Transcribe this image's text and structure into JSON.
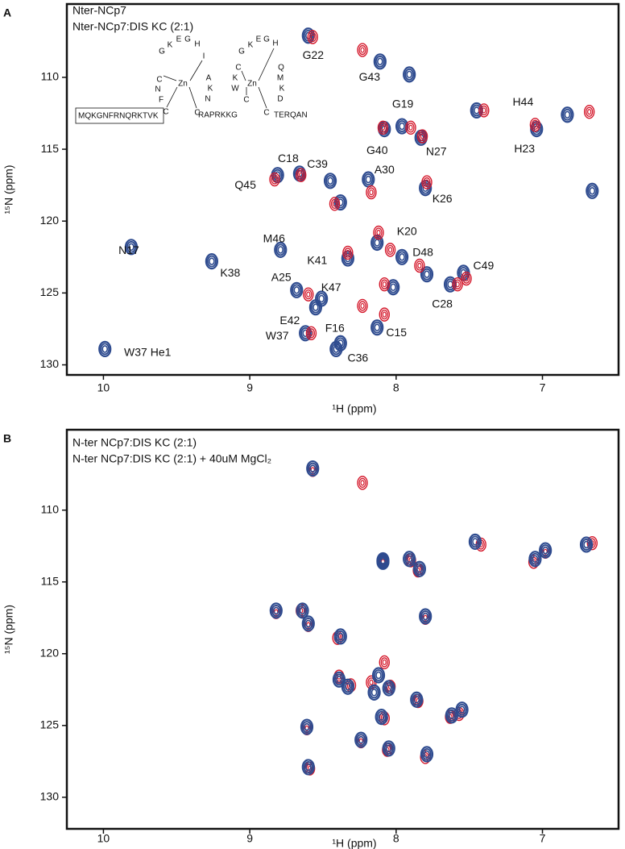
{
  "chart_data": [
    {
      "type": "scatter",
      "panel": "A",
      "xlabel": "¹H (ppm)",
      "ylabel": "¹⁵N (ppm)",
      "xlim": [
        10.25,
        6.48
      ],
      "ylim": [
        104.9,
        130.7
      ],
      "xticks": [
        10,
        9,
        8,
        7
      ],
      "yticks": [
        110,
        115,
        120,
        125,
        130
      ],
      "series": [
        {
          "name": "Nter-NCp7",
          "color": "#2e4b8f",
          "x": [
            8.6,
            8.11,
            7.91,
            7.96,
            8.08,
            7.83,
            7.45,
            6.83,
            7.04,
            6.66,
            8.66,
            8.81,
            8.45,
            8.19,
            7.8,
            8.38,
            9.81,
            9.26,
            8.79,
            8.13,
            8.33,
            7.96,
            7.79,
            7.54,
            7.63,
            8.68,
            8.51,
            8.55,
            8.62,
            8.38,
            8.41,
            8.13,
            9.99,
            8.02
          ],
          "y": [
            107.1,
            108.9,
            109.8,
            113.4,
            113.6,
            114.2,
            112.3,
            112.6,
            113.6,
            117.9,
            116.7,
            116.8,
            117.2,
            117.1,
            117.7,
            118.7,
            121.8,
            122.8,
            122.0,
            121.5,
            122.6,
            122.5,
            123.7,
            123.6,
            124.4,
            124.8,
            125.4,
            126.0,
            127.8,
            128.5,
            128.9,
            127.4,
            128.9,
            124.6
          ],
          "labels": [
            "G22",
            "G43",
            null,
            "G19",
            "G40",
            "N27",
            null,
            "H44",
            "H23",
            null,
            "C18",
            "Q45",
            "C39",
            "A30",
            "K26",
            null,
            "N17",
            "K38",
            "M46",
            "K20",
            "K41",
            "D48",
            null,
            "C49",
            "C28",
            "A25",
            "K47",
            "E42",
            "W37",
            "F16",
            "C36",
            "C15",
            "W37 He1",
            null
          ]
        },
        {
          "name": "Nter-NCp7:DIS KC (2:1)",
          "color": "#d4172a",
          "x": [
            8.57,
            8.23,
            7.4,
            6.68,
            7.05,
            7.9,
            8.09,
            7.82,
            8.65,
            8.83,
            8.42,
            7.79,
            8.12,
            8.33,
            8.04,
            7.84,
            7.58,
            8.08,
            8.6,
            8.23,
            8.58,
            8.08,
            8.17,
            7.52
          ],
          "y": [
            107.2,
            108.1,
            112.3,
            112.4,
            113.3,
            113.5,
            113.5,
            114.1,
            116.8,
            117.1,
            118.8,
            117.3,
            120.8,
            122.2,
            122.0,
            123.1,
            124.4,
            124.4,
            125.1,
            125.9,
            127.8,
            126.5,
            118.0,
            124.0
          ]
        }
      ],
      "inset": {
        "finger1": [
          "G",
          "K",
          "E",
          "G",
          "H",
          "I",
          "A",
          "K",
          "N",
          "C",
          "N",
          "F",
          "C",
          "C",
          "Zn"
        ],
        "finger2": [
          "G",
          "K",
          "E",
          "G",
          "H",
          "Q",
          "M",
          "K",
          "D",
          "C",
          "K",
          "W",
          "C",
          "C",
          "Zn"
        ],
        "linker": "RAPRKKG",
        "tail": "TERQAN",
        "sequence": [
          {
            "text": "MQ",
            "color": "#111111"
          },
          {
            "text": "K",
            "color": "#d4172a"
          },
          {
            "text": "GNF",
            "color": "#111111"
          },
          {
            "text": "R",
            "color": "#d4172a"
          },
          {
            "text": "NQ",
            "color": "#111111"
          },
          {
            "text": "RK",
            "color": "#d4172a"
          },
          {
            "text": "TV",
            "color": "#111111"
          },
          {
            "text": "K",
            "color": "#d4172a"
          }
        ]
      }
    },
    {
      "type": "scatter",
      "panel": "B",
      "xlabel": "¹H (ppm)",
      "ylabel": "¹⁵N (ppm)",
      "xlim": [
        10.25,
        6.48
      ],
      "ylim": [
        104.4,
        132.2
      ],
      "xticks": [
        10,
        9,
        8,
        7
      ],
      "yticks": [
        110,
        115,
        120,
        125,
        130
      ],
      "series": [
        {
          "name": "N-ter NCp7:DIS KC (2:1)",
          "color": "#d4172a",
          "x": [
            8.57,
            8.23,
            7.42,
            6.66,
            6.98,
            7.06,
            7.9,
            8.09,
            7.85,
            8.82,
            8.65,
            8.6,
            8.4,
            7.8,
            8.08,
            8.31,
            8.04,
            7.85,
            7.57,
            7.63,
            8.08,
            8.61,
            8.24,
            8.59,
            8.06,
            7.8,
            8.39,
            8.17
          ],
          "y": [
            107.2,
            108.1,
            112.4,
            112.3,
            112.9,
            113.6,
            113.5,
            113.6,
            114.2,
            117.1,
            117.0,
            118.0,
            118.9,
            117.5,
            120.6,
            122.2,
            122.3,
            123.3,
            124.2,
            124.4,
            124.5,
            125.2,
            126.1,
            128.0,
            126.7,
            127.2,
            121.6,
            122.0
          ]
        },
        {
          "name": "N-ter NCp7:DIS KC (2:1) + 40uM MgCl₂",
          "color": "#2e4b8f",
          "x": [
            8.57,
            8.09,
            7.46,
            6.7,
            6.98,
            7.05,
            7.91,
            8.09,
            7.84,
            8.82,
            8.64,
            8.6,
            8.38,
            7.8,
            8.12,
            8.33,
            8.05,
            7.86,
            7.55,
            7.62,
            8.1,
            8.61,
            8.24,
            8.6,
            8.05,
            7.79,
            8.39,
            8.15
          ],
          "y": [
            107.1,
            113.5,
            112.2,
            112.4,
            112.8,
            113.4,
            113.4,
            113.6,
            114.1,
            117.0,
            117.0,
            117.9,
            118.8,
            117.4,
            121.5,
            122.3,
            122.4,
            123.2,
            123.9,
            124.3,
            124.4,
            125.1,
            126.0,
            127.9,
            126.6,
            127.0,
            121.8,
            122.7
          ]
        }
      ]
    }
  ]
}
